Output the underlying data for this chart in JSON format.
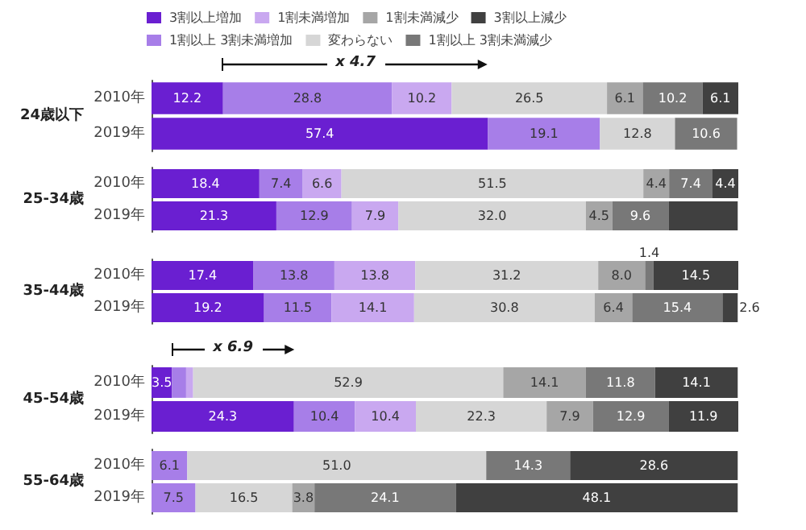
{
  "chart_data": [
    {
      "type": "bar",
      "orientation": "horizontal",
      "stacked": true,
      "ylabel": "24歳以下",
      "categories": [
        "2010年",
        "2019年"
      ],
      "legend": "top",
      "annotations": [
        "x 4.7"
      ],
      "series": [
        {
          "name": "3割以上増加",
          "color": "#6a1fd1",
          "values": [
            12.2,
            57.4
          ],
          "value_labels": [
            "12.2",
            "57.4"
          ]
        },
        {
          "name": "1割以上 3割未満増加",
          "color": "#a77ee8",
          "values": [
            28.8,
            19.1
          ],
          "value_labels": [
            "28.8",
            "19.1"
          ]
        },
        {
          "name": "1割未満増加",
          "color": "#c9a8f0",
          "values": [
            10.2,
            null
          ],
          "value_labels": [
            "10.2",
            null
          ]
        },
        {
          "name": "変わらない",
          "color": "#d6d6d6",
          "values": [
            26.5,
            12.8
          ],
          "value_labels": [
            "26.5",
            "12.8"
          ]
        },
        {
          "name": "1割未満減少",
          "color": "#a6a6a6",
          "values": [
            6.1,
            null
          ],
          "value_labels": [
            "6.1",
            null
          ]
        },
        {
          "name": "1割以上 3割未満減少",
          "color": "#787878",
          "values": [
            10.2,
            10.6
          ],
          "value_labels": [
            "10.2",
            "10.6"
          ]
        },
        {
          "name": "3割以上減少",
          "color": "#404040",
          "values": [
            6.1,
            null
          ],
          "value_labels": [
            "6.1",
            null
          ]
        }
      ]
    },
    {
      "type": "bar",
      "orientation": "horizontal",
      "stacked": true,
      "ylabel": "25-34歳",
      "categories": [
        "2010年",
        "2019年"
      ],
      "series": [
        {
          "color": "#6a1fd1",
          "values": [
            18.4,
            21.3
          ],
          "value_labels": [
            "18.4",
            "21.3"
          ]
        },
        {
          "color": "#a77ee8",
          "values": [
            7.4,
            12.9
          ],
          "value_labels": [
            "7.4",
            "12.9"
          ]
        },
        {
          "color": "#c9a8f0",
          "values": [
            6.6,
            7.9
          ],
          "value_labels": [
            "6.6",
            "7.9"
          ]
        },
        {
          "color": "#d6d6d6",
          "values": [
            51.5,
            32.0
          ],
          "value_labels": [
            "51.5",
            "32.0"
          ]
        },
        {
          "color": "#a6a6a6",
          "values": [
            4.4,
            4.5
          ],
          "value_labels": [
            "4.4",
            "4.5"
          ]
        },
        {
          "color": "#787878",
          "values": [
            7.4,
            9.6
          ],
          "value_labels": [
            "7.4",
            "9.6"
          ]
        },
        {
          "color": "#404040",
          "values": [
            4.4,
            11.8
          ],
          "value_labels": [
            "4.4",
            null
          ]
        }
      ]
    },
    {
      "type": "bar",
      "orientation": "horizontal",
      "stacked": true,
      "ylabel": "35-44歳",
      "categories": [
        "2010年",
        "2019年"
      ],
      "series": [
        {
          "color": "#6a1fd1",
          "values": [
            17.4,
            19.2
          ],
          "value_labels": [
            "17.4",
            "19.2"
          ]
        },
        {
          "color": "#a77ee8",
          "values": [
            13.8,
            11.5
          ],
          "value_labels": [
            "13.8",
            "11.5"
          ]
        },
        {
          "color": "#c9a8f0",
          "values": [
            13.8,
            14.1
          ],
          "value_labels": [
            "13.8",
            "14.1"
          ]
        },
        {
          "color": "#d6d6d6",
          "values": [
            31.2,
            30.8
          ],
          "value_labels": [
            "31.2",
            "30.8"
          ]
        },
        {
          "color": "#a6a6a6",
          "values": [
            8.0,
            6.4
          ],
          "value_labels": [
            "8.0",
            "6.4"
          ]
        },
        {
          "color": "#787878",
          "values": [
            1.4,
            15.4
          ],
          "value_labels": [
            "1.4",
            "15.4"
          ]
        },
        {
          "color": "#404040",
          "values": [
            14.5,
            2.6
          ],
          "value_labels": [
            "14.5",
            "2.6"
          ]
        }
      ]
    },
    {
      "type": "bar",
      "orientation": "horizontal",
      "stacked": true,
      "ylabel": "45-54歳",
      "categories": [
        "2010年",
        "2019年"
      ],
      "annotations": [
        "x 6.9"
      ],
      "series": [
        {
          "color": "#6a1fd1",
          "values": [
            3.5,
            24.3
          ],
          "value_labels": [
            "3.5",
            "24.3"
          ]
        },
        {
          "color": "#a77ee8",
          "values": [
            2.4,
            10.4
          ],
          "value_labels": [
            null,
            "10.4"
          ]
        },
        {
          "color": "#c9a8f0",
          "values": [
            1.2,
            10.4
          ],
          "value_labels": [
            null,
            "10.4"
          ]
        },
        {
          "color": "#d6d6d6",
          "values": [
            52.9,
            22.3
          ],
          "value_labels": [
            "52.9",
            "22.3"
          ]
        },
        {
          "color": "#a6a6a6",
          "values": [
            14.1,
            7.9
          ],
          "value_labels": [
            "14.1",
            "7.9"
          ]
        },
        {
          "color": "#787878",
          "values": [
            11.8,
            12.9
          ],
          "value_labels": [
            "11.8",
            "12.9"
          ]
        },
        {
          "color": "#404040",
          "values": [
            14.1,
            11.9
          ],
          "value_labels": [
            "14.1",
            "11.9"
          ]
        }
      ]
    },
    {
      "type": "bar",
      "orientation": "horizontal",
      "stacked": true,
      "ylabel": "55-64歳",
      "categories": [
        "2010年",
        "2019年"
      ],
      "series": [
        {
          "color": "#a77ee8",
          "values": [
            6.1,
            7.5
          ],
          "value_labels": [
            "6.1",
            "7.5"
          ]
        },
        {
          "color": "#d6d6d6",
          "values": [
            51.0,
            16.5
          ],
          "value_labels": [
            "51.0",
            "16.5"
          ]
        },
        {
          "color": "#a6a6a6",
          "values": [
            null,
            3.8
          ],
          "value_labels": [
            null,
            "3.8"
          ]
        },
        {
          "color": "#787878",
          "values": [
            14.3,
            24.1
          ],
          "value_labels": [
            "14.3",
            "24.1"
          ]
        },
        {
          "color": "#404040",
          "values": [
            28.6,
            48.1
          ],
          "value_labels": [
            "28.6",
            "48.1"
          ]
        }
      ]
    }
  ]
}
